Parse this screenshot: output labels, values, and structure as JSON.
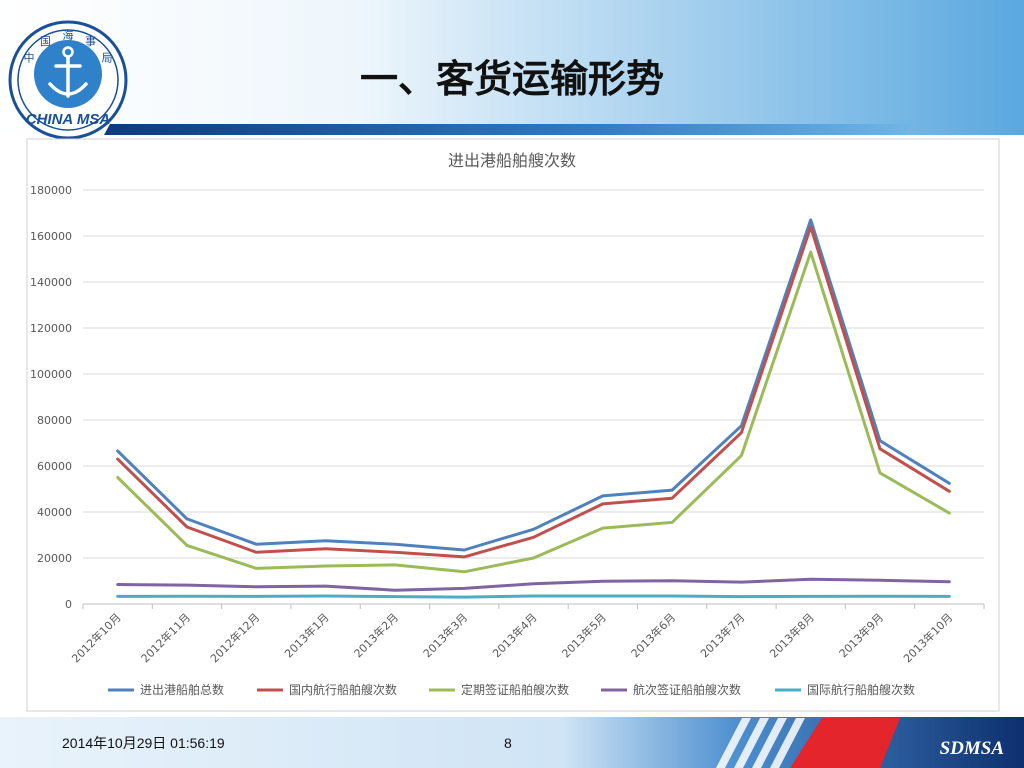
{
  "slide": {
    "title": "一、客货运输形势",
    "logo_text": "CHINA MSA",
    "logo_chars": [
      "中",
      "国",
      "海",
      "事",
      "局"
    ],
    "footer_date": "2014年10月29日  01:56:19",
    "page_number": "8",
    "brand": "SDMSA"
  },
  "colors": {
    "header_blue": "#5aa8df",
    "footer_dark": "#0d2f6e",
    "accent_red": "#e5252c"
  },
  "chart_data": {
    "type": "line",
    "title": "进出港船舶艘次数",
    "xlabel": "",
    "ylabel": "",
    "ylim": [
      0,
      180000
    ],
    "yticks": [
      0,
      20000,
      40000,
      60000,
      80000,
      100000,
      120000,
      140000,
      160000,
      180000
    ],
    "grid": true,
    "legend": "bottom",
    "categories": [
      "2012年10月",
      "2012年11月",
      "2012年12月",
      "2013年1月",
      "2013年2月",
      "2013年3月",
      "2013年4月",
      "2013年5月",
      "2013年6月",
      "2013年7月",
      "2013年8月",
      "2013年9月",
      "2013年10月"
    ],
    "series": [
      {
        "name": "进出港船舶总数",
        "color": "#4f81bd",
        "values": [
          66500,
          37000,
          26000,
          27500,
          26000,
          23500,
          32500,
          47000,
          49500,
          77500,
          167000,
          71000,
          52500
        ]
      },
      {
        "name": "国内航行船舶艘次数",
        "color": "#c0504d",
        "values": [
          63000,
          33500,
          22500,
          24000,
          22500,
          20500,
          29000,
          43500,
          46000,
          74500,
          164000,
          67500,
          49000
        ]
      },
      {
        "name": "定期签证船舶艘次数",
        "color": "#9bbb59",
        "values": [
          55000,
          25500,
          15500,
          16500,
          17000,
          14000,
          20000,
          33000,
          35500,
          64500,
          153000,
          57000,
          39500
        ]
      },
      {
        "name": "航次签证船舶艘次数",
        "color": "#8064a2",
        "values": [
          8500,
          8200,
          7500,
          7800,
          6000,
          6800,
          8800,
          9900,
          10100,
          9500,
          10800,
          10300,
          9700
        ]
      },
      {
        "name": "国际航行船舶艘次数",
        "color": "#4bacc6",
        "values": [
          3300,
          3400,
          3300,
          3500,
          3200,
          3000,
          3500,
          3500,
          3500,
          3200,
          3300,
          3400,
          3300
        ]
      }
    ]
  }
}
